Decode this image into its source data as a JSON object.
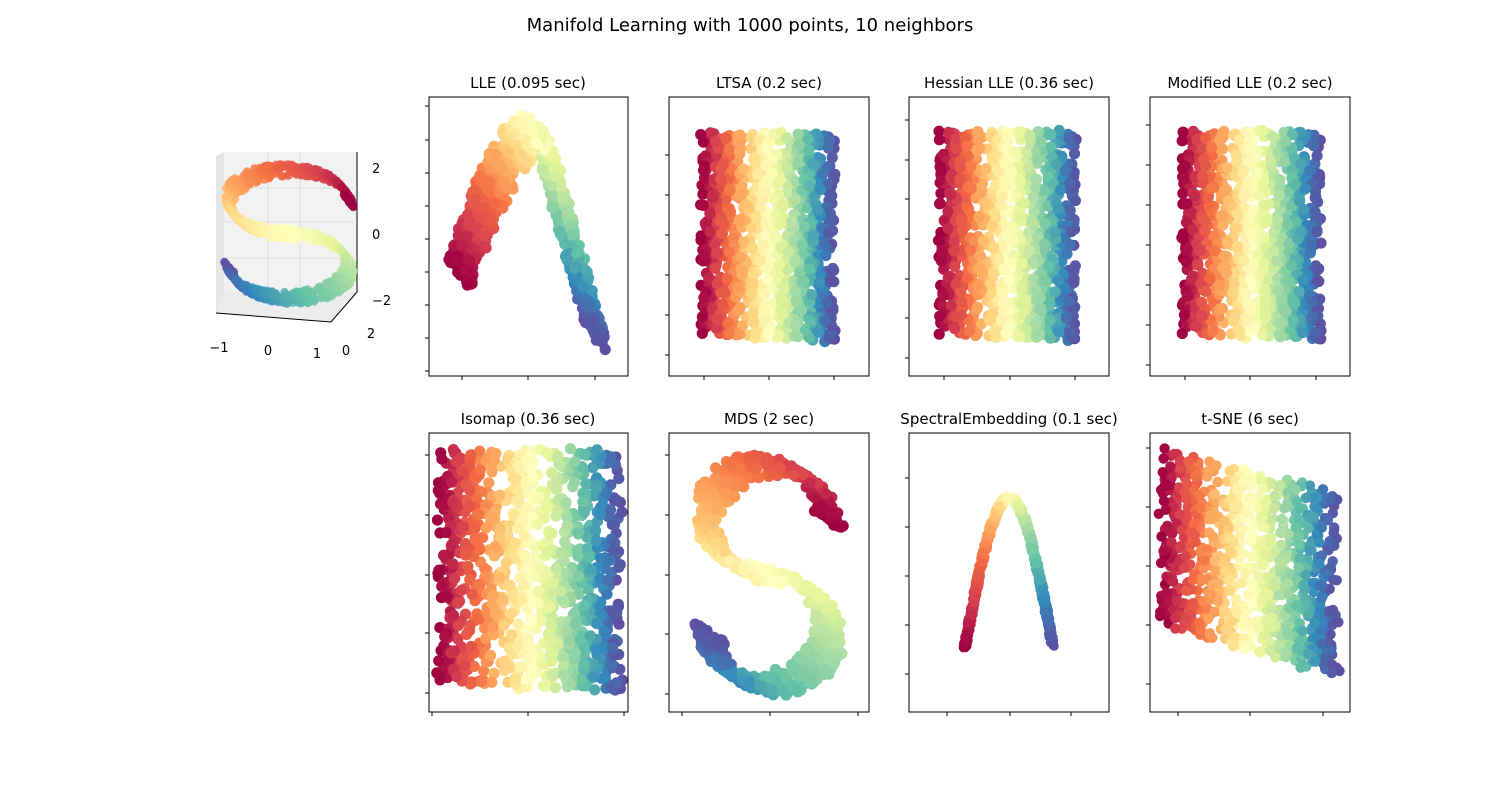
{
  "figure": {
    "title": "Manifold Learning with 1000 points, 10 neighbors",
    "colormap": [
      "#9e0142",
      "#d53e4f",
      "#f46d43",
      "#fdae61",
      "#fee08b",
      "#ffffbf",
      "#e6f598",
      "#abdda4",
      "#66c2a5",
      "#3288bd",
      "#5e4fa2"
    ],
    "background": "#ffffff"
  },
  "chart_data": [
    {
      "type": "scatter3d",
      "name": "s-curve-original",
      "title": "",
      "description_source": "S-curve dataset",
      "x_ticks": [
        "−1",
        "0",
        "1"
      ],
      "y_ticks": [
        "0",
        "2"
      ],
      "z_ticks": [
        "−2",
        "0",
        "2"
      ],
      "xlim": [
        -1,
        1
      ],
      "ylim": [
        0,
        2
      ],
      "zlim": [
        -2,
        2
      ]
    },
    {
      "type": "scatter",
      "name": "lle",
      "title": "LLE (0.095 sec)",
      "shape": "lle",
      "xlabel": "",
      "ylabel": "",
      "tick_labels": false
    },
    {
      "type": "scatter",
      "name": "ltsa",
      "title": "LTSA (0.2 sec)",
      "shape": "rect",
      "xlabel": "",
      "ylabel": "",
      "tick_labels": false
    },
    {
      "type": "scatter",
      "name": "hessian-lle",
      "title": "Hessian LLE (0.36 sec)",
      "shape": "rect",
      "xlabel": "",
      "ylabel": "",
      "tick_labels": false
    },
    {
      "type": "scatter",
      "name": "modified-lle",
      "title": "Modified LLE (0.2 sec)",
      "shape": "rect",
      "xlabel": "",
      "ylabel": "",
      "tick_labels": false
    },
    {
      "type": "scatter",
      "name": "isomap",
      "title": "Isomap (0.36 sec)",
      "shape": "rect-sparse",
      "reversed": true,
      "xlabel": "",
      "ylabel": "",
      "tick_labels": false
    },
    {
      "type": "scatter",
      "name": "mds",
      "title": "MDS (2 sec)",
      "shape": "s-curve",
      "xlabel": "",
      "ylabel": "",
      "tick_labels": false
    },
    {
      "type": "scatter",
      "name": "spectral-embedding",
      "title": "SpectralEmbedding (0.1 sec)",
      "shape": "arch",
      "xlabel": "",
      "ylabel": "",
      "tick_labels": false
    },
    {
      "type": "scatter",
      "name": "t-sne",
      "title": "t-SNE (6 sec)",
      "shape": "tsne",
      "xlabel": "",
      "ylabel": "",
      "tick_labels": false
    }
  ]
}
